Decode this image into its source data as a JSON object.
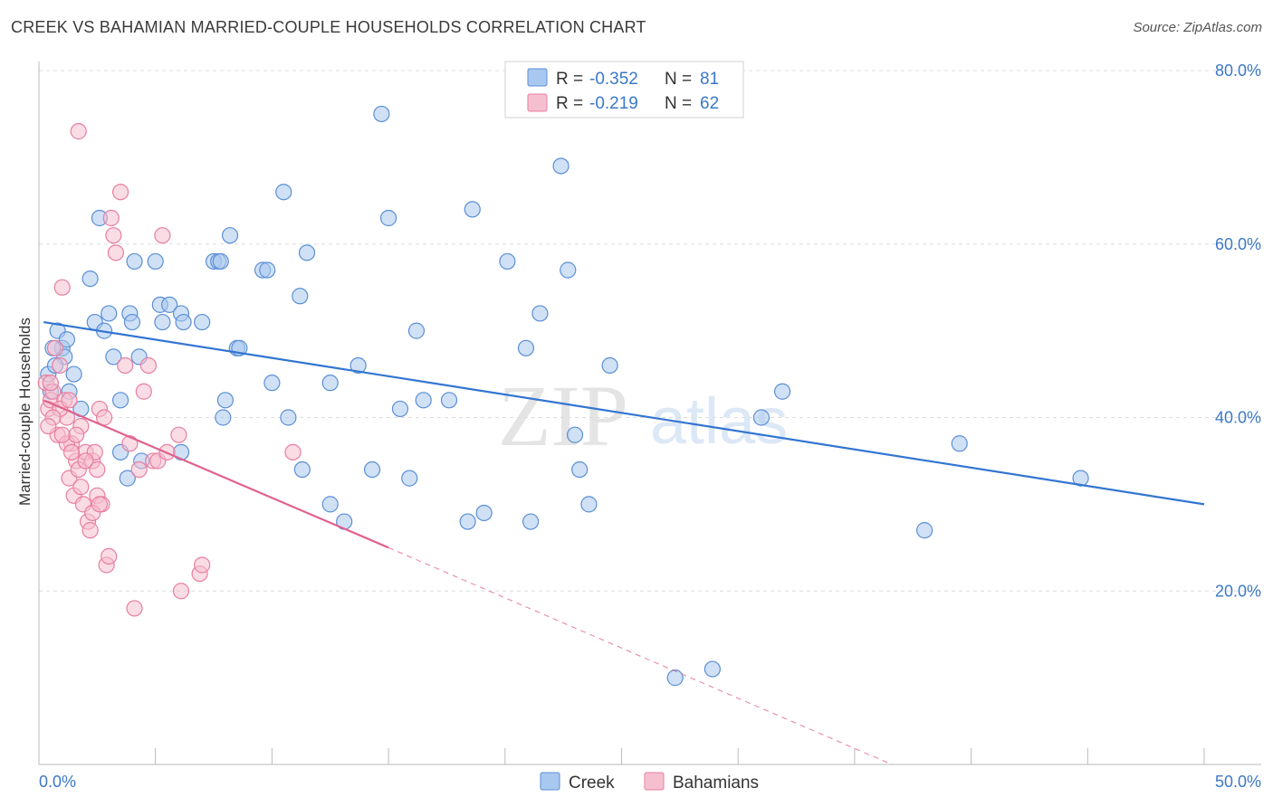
{
  "title": "CREEK VS BAHAMIAN MARRIED-COUPLE HOUSEHOLDS CORRELATION CHART",
  "source": "Source: ZipAtlas.com",
  "watermark": {
    "zip": "ZIP",
    "atlas": "atlas"
  },
  "colors": {
    "creek_fill": "#a9c8ef",
    "creek_stroke": "#5b8fd6",
    "creek_line": "#3375d1",
    "bah_fill": "#f6bfd0",
    "bah_stroke": "#e87fa0",
    "bah_line": "#e0628e",
    "axis_label": "#3b78c8",
    "grid": "#dcdcdc"
  },
  "legend": {
    "r_label": "R =",
    "n_label": "N =",
    "creek": {
      "r": "-0.352",
      "n": "81"
    },
    "bahamians": {
      "r": "-0.219",
      "n": "62"
    }
  },
  "bottom_legend": {
    "creek": "Creek",
    "bahamians": "Bahamians"
  },
  "chart_data": {
    "type": "scatter",
    "xlabel": "",
    "ylabel": "Married-couple Households",
    "xlim": [
      0,
      50
    ],
    "ylim": [
      0,
      80
    ],
    "x_tick_labels": {
      "min": "0.0%",
      "max": "50.0%"
    },
    "y_ticks": [
      {
        "value": 80,
        "label": "80.0%"
      },
      {
        "value": 60,
        "label": "60.0%"
      },
      {
        "value": 40,
        "label": "40.0%"
      },
      {
        "value": 20,
        "label": "20.0%"
      }
    ],
    "series": [
      {
        "name": "Creek",
        "trend": {
          "x0": 0.2,
          "y0": 51.0,
          "x1": 50.0,
          "y1": 30.0
        },
        "points": [
          [
            0.4,
            45
          ],
          [
            0.8,
            50
          ],
          [
            1.0,
            48
          ],
          [
            1.2,
            49
          ],
          [
            1.5,
            45
          ],
          [
            1.8,
            41
          ],
          [
            0.5,
            43
          ],
          [
            1.1,
            47
          ],
          [
            0.7,
            46
          ],
          [
            1.3,
            43
          ],
          [
            2.2,
            56
          ],
          [
            2.6,
            63
          ],
          [
            2.4,
            51
          ],
          [
            2.8,
            50
          ],
          [
            3.0,
            52
          ],
          [
            3.2,
            47
          ],
          [
            3.5,
            42
          ],
          [
            3.5,
            36
          ],
          [
            3.9,
            52
          ],
          [
            4.0,
            51
          ],
          [
            4.3,
            47
          ],
          [
            4.1,
            58
          ],
          [
            4.4,
            35
          ],
          [
            3.8,
            33
          ],
          [
            5.0,
            58
          ],
          [
            5.2,
            53
          ],
          [
            5.3,
            51
          ],
          [
            5.6,
            53
          ],
          [
            6.1,
            52
          ],
          [
            6.2,
            51
          ],
          [
            6.1,
            36
          ],
          [
            7.0,
            51
          ],
          [
            7.5,
            58
          ],
          [
            7.7,
            58
          ],
          [
            7.8,
            58
          ],
          [
            8.0,
            42
          ],
          [
            8.2,
            61
          ],
          [
            8.5,
            48
          ],
          [
            8.6,
            48
          ],
          [
            7.9,
            40
          ],
          [
            9.6,
            57
          ],
          [
            9.8,
            57
          ],
          [
            10.0,
            44
          ],
          [
            10.5,
            66
          ],
          [
            10.7,
            40
          ],
          [
            11.2,
            54
          ],
          [
            11.5,
            59
          ],
          [
            11.3,
            34
          ],
          [
            12.5,
            44
          ],
          [
            13.1,
            28
          ],
          [
            13.7,
            46
          ],
          [
            14.3,
            34
          ],
          [
            14.7,
            75
          ],
          [
            15.0,
            63
          ],
          [
            15.5,
            41
          ],
          [
            15.9,
            33
          ],
          [
            16.2,
            50
          ],
          [
            16.5,
            42
          ],
          [
            17.6,
            42
          ],
          [
            18.6,
            64
          ],
          [
            18.4,
            28
          ],
          [
            19.1,
            29
          ],
          [
            20.1,
            58
          ],
          [
            20.9,
            48
          ],
          [
            21.1,
            28
          ],
          [
            21.5,
            52
          ],
          [
            22.4,
            69
          ],
          [
            22.7,
            57
          ],
          [
            23.0,
            38
          ],
          [
            23.2,
            34
          ],
          [
            23.6,
            30
          ],
          [
            24.5,
            46
          ],
          [
            12.5,
            30
          ],
          [
            27.3,
            10
          ],
          [
            28.9,
            11
          ],
          [
            31.0,
            40
          ],
          [
            31.9,
            43
          ],
          [
            38.0,
            27
          ],
          [
            39.5,
            37
          ],
          [
            44.7,
            33
          ],
          [
            0.6,
            48
          ]
        ]
      },
      {
        "name": "Bahamians",
        "trend": {
          "x0": 0.2,
          "y0": 42.0,
          "x1": 15.0,
          "y1": 25.0
        },
        "trend_extension": {
          "x0": 15.0,
          "y0": 25.0,
          "x1": 36.6,
          "y1": 0.0
        },
        "points": [
          [
            0.3,
            44
          ],
          [
            0.4,
            41
          ],
          [
            0.5,
            42
          ],
          [
            0.6,
            43
          ],
          [
            0.7,
            48
          ],
          [
            0.8,
            38
          ],
          [
            0.9,
            46
          ],
          [
            1.0,
            55
          ],
          [
            1.1,
            42
          ],
          [
            1.2,
            40
          ],
          [
            1.3,
            33
          ],
          [
            1.4,
            37
          ],
          [
            1.5,
            31
          ],
          [
            1.6,
            35
          ],
          [
            1.7,
            34
          ],
          [
            1.8,
            39
          ],
          [
            1.9,
            30
          ],
          [
            2.0,
            36
          ],
          [
            2.1,
            28
          ],
          [
            2.2,
            27
          ],
          [
            2.3,
            35
          ],
          [
            2.4,
            36
          ],
          [
            2.5,
            31
          ],
          [
            2.6,
            41
          ],
          [
            2.7,
            30
          ],
          [
            2.8,
            40
          ],
          [
            2.9,
            23
          ],
          [
            3.0,
            24
          ],
          [
            3.1,
            63
          ],
          [
            3.2,
            61
          ],
          [
            3.3,
            59
          ],
          [
            3.5,
            66
          ],
          [
            3.7,
            46
          ],
          [
            3.9,
            37
          ],
          [
            4.1,
            18
          ],
          [
            4.3,
            34
          ],
          [
            4.5,
            43
          ],
          [
            4.7,
            46
          ],
          [
            4.9,
            35
          ],
          [
            5.1,
            35
          ],
          [
            5.3,
            61
          ],
          [
            5.5,
            36
          ],
          [
            1.7,
            73
          ],
          [
            6.0,
            38
          ],
          [
            6.1,
            20
          ],
          [
            6.9,
            22
          ],
          [
            7.0,
            23
          ],
          [
            10.9,
            36
          ],
          [
            0.5,
            44
          ],
          [
            0.9,
            41
          ],
          [
            1.2,
            37
          ],
          [
            1.4,
            36
          ],
          [
            1.6,
            38
          ],
          [
            2.0,
            35
          ],
          [
            2.3,
            29
          ],
          [
            2.5,
            34
          ],
          [
            0.6,
            40
          ],
          [
            1.0,
            38
          ],
          [
            1.3,
            42
          ],
          [
            0.4,
            39
          ],
          [
            1.8,
            32
          ],
          [
            2.6,
            30
          ]
        ]
      }
    ]
  }
}
